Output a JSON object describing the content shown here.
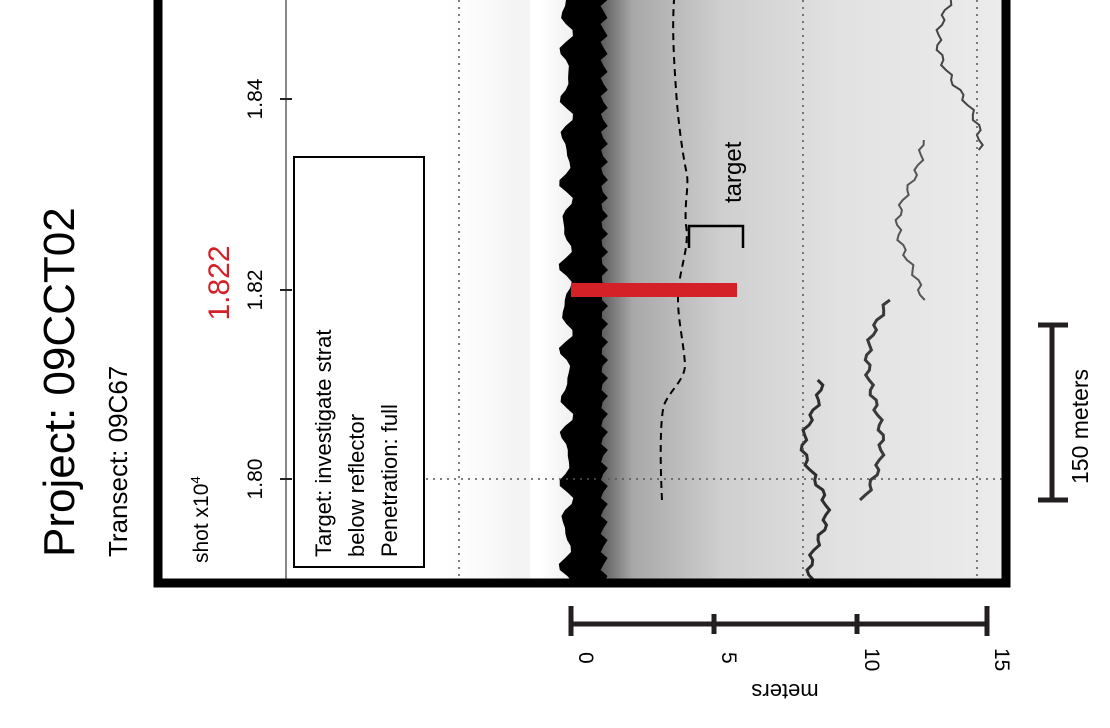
{
  "header": {
    "project_label": "Project: 09CCT02",
    "transect_label": "Transect: 09C67"
  },
  "shot_axis": {
    "label_prefix": "shot x10",
    "label_exponent": "4",
    "ticks": [
      "1.80",
      "1.82",
      "1.84"
    ],
    "highlight_value": "1.822",
    "highlight_color": "#d42027"
  },
  "annotation_box": {
    "lines": [
      "Target: investigate strat",
      "below reflector",
      "Penetration: full"
    ]
  },
  "target_label": "target",
  "depth_axis": {
    "label": "meters",
    "ticks": [
      "0",
      "5",
      "10",
      "15"
    ]
  },
  "scale_bar": {
    "label": "150 meters"
  },
  "colors": {
    "frame": "#000000",
    "highlight": "#d42027",
    "axis": "#231f20"
  }
}
